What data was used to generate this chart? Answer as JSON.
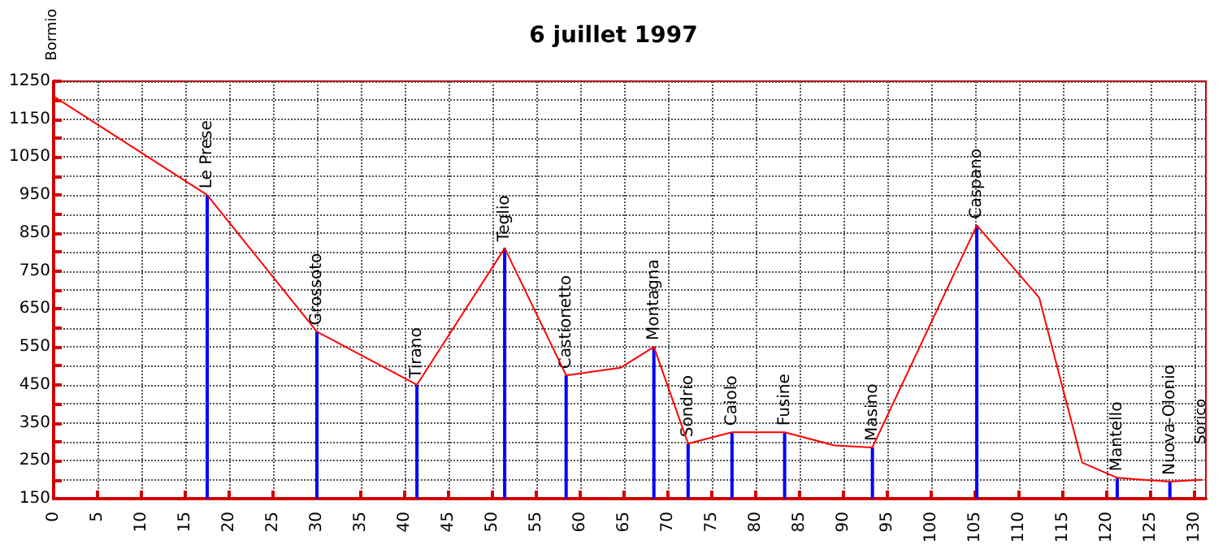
{
  "chart_data": {
    "type": "line",
    "title": "6 juillet 1997",
    "xlim": [
      0,
      131.3
    ],
    "ylim": [
      150,
      1250
    ],
    "xticks": [
      0,
      5,
      10,
      15,
      20,
      25,
      30,
      35,
      40,
      45,
      50,
      55,
      60,
      65,
      70,
      75,
      80,
      85,
      90,
      95,
      100,
      105,
      110,
      115,
      120,
      125,
      130
    ],
    "yticks": [
      150,
      {
        "value": 200,
        "label": null
      },
      250,
      {
        "value": 300,
        "label": null
      },
      350,
      {
        "value": 400,
        "label": null
      },
      450,
      {
        "value": 500,
        "label": null
      },
      550,
      {
        "value": 600,
        "label": null
      },
      650,
      {
        "value": 700,
        "label": null
      },
      750,
      {
        "value": 800,
        "label": null
      },
      850,
      {
        "value": 900,
        "label": null
      },
      950,
      {
        "value": 1000,
        "label": null
      },
      1050,
      {
        "value": 1100,
        "label": null
      },
      1150,
      {
        "value": 1200,
        "label": null
      },
      1250
    ],
    "grid": true,
    "marker": "none",
    "series": [
      {
        "color": "#ff0000",
        "x": [
          0,
          17.5,
          30,
          41.4,
          51.4,
          58.4,
          64.6,
          68.4,
          72.3,
          77.3,
          83.3,
          89,
          93.3,
          105.2,
          112.3,
          117.2,
          121.2,
          124.1,
          127.2,
          130.9
        ],
        "values": [
          1210,
          950,
          590,
          450,
          810,
          475,
          495,
          550,
          295,
          325,
          325,
          290,
          285,
          870,
          680,
          245,
          205,
          200,
          195,
          200
        ]
      },
      {
        "type": "bar",
        "color": "#0000ff",
        "x": [
          17.5,
          30,
          41.4,
          51.4,
          58.4,
          68.4,
          72.3,
          77.3,
          83.3,
          93.3,
          105.2,
          121.2,
          127.2
        ],
        "values": [
          950,
          590,
          450,
          810,
          475,
          550,
          295,
          325,
          325,
          285,
          870,
          205,
          195
        ],
        "value_labels": [
          "Le Prese",
          "Grossoto",
          "Tirano",
          "Teglio",
          "Castionetto",
          "Montagna",
          "Sondrio",
          "Caiolo",
          "Fusine",
          "Masino",
          "Caspano",
          "Mantello",
          "Nuova-Olonio"
        ]
      }
    ],
    "annotations": [
      {
        "text": "Bormio",
        "x": 0,
        "y": 1210
      },
      {
        "text": "Sorico",
        "x": 130.9,
        "y": 200
      }
    ]
  }
}
